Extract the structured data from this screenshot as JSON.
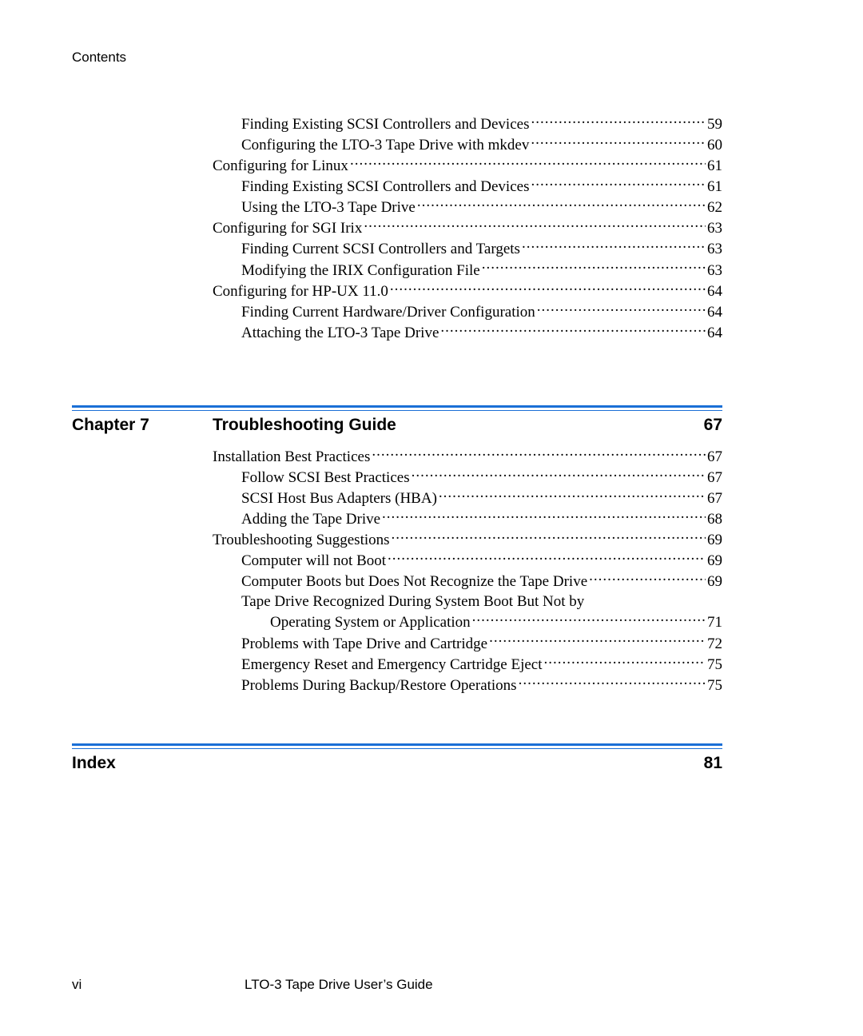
{
  "header": "Contents",
  "colors": {
    "rule": "#1a6fd6",
    "text": "#000000",
    "background": "#ffffff"
  },
  "fonts": {
    "serif": "Book Antiqua / Palatino, ~19px",
    "sans": "Arial, header ~17px, section-head ~21px bold, footer ~17px"
  },
  "toc_top": [
    {
      "indent": 2,
      "text": "Finding Existing SCSI Controllers and Devices ",
      "page": "59"
    },
    {
      "indent": 2,
      "text": "Configuring the LTO-3 Tape Drive with mkdev",
      "page": "60"
    },
    {
      "indent": 1,
      "text": "Configuring for Linux",
      "page": "61"
    },
    {
      "indent": 2,
      "text": "Finding Existing SCSI Controllers and Devices ",
      "page": "61"
    },
    {
      "indent": 2,
      "text": "Using the LTO-3 Tape Drive ",
      "page": "62"
    },
    {
      "indent": 1,
      "text": "Configuring for SGI Irix ",
      "page": "63"
    },
    {
      "indent": 2,
      "text": "Finding Current SCSI Controllers and Targets",
      "page": "63"
    },
    {
      "indent": 2,
      "text": "Modifying the IRIX Configuration File",
      "page": "63"
    },
    {
      "indent": 1,
      "text": "Configuring for HP-UX 11.0 ",
      "page": "64"
    },
    {
      "indent": 2,
      "text": "Finding Current Hardware/Driver Configuration",
      "page": "64"
    },
    {
      "indent": 2,
      "text": "Attaching the LTO-3 Tape Drive ",
      "page": "64"
    }
  ],
  "section_chapter7": {
    "label": "Chapter 7",
    "title": "Troubleshooting Guide",
    "page": "67",
    "entries": [
      {
        "indent": 1,
        "text": "Installation Best Practices",
        "page": "67"
      },
      {
        "indent": 2,
        "text": "Follow SCSI Best Practices ",
        "page": "67"
      },
      {
        "indent": 2,
        "text": "SCSI Host Bus Adapters (HBA) ",
        "page": "67"
      },
      {
        "indent": 2,
        "text": "Adding the Tape Drive",
        "page": "68"
      },
      {
        "indent": 1,
        "text": "Troubleshooting Suggestions ",
        "page": "69"
      },
      {
        "indent": 2,
        "text": "Computer will not Boot",
        "page": "69"
      },
      {
        "indent": 2,
        "text": "Computer Boots but Does Not Recognize the Tape Drive",
        "page": "69"
      },
      {
        "indent": 2,
        "wrap_first": "Tape Drive Recognized During System Boot But Not by ",
        "wrap_second": "Operating System or Application",
        "page": "71"
      },
      {
        "indent": 2,
        "text": "Problems with Tape Drive and Cartridge ",
        "page": "72"
      },
      {
        "indent": 2,
        "text": "Emergency Reset and Emergency Cartridge Eject ",
        "page": "75"
      },
      {
        "indent": 2,
        "text": "Problems During Backup/Restore Operations ",
        "page": "75"
      }
    ]
  },
  "section_index": {
    "label": "Index",
    "title": "",
    "page": "81"
  },
  "footer": {
    "page_number": "vi",
    "doc_title": "LTO-3 Tape Drive User’s Guide"
  }
}
